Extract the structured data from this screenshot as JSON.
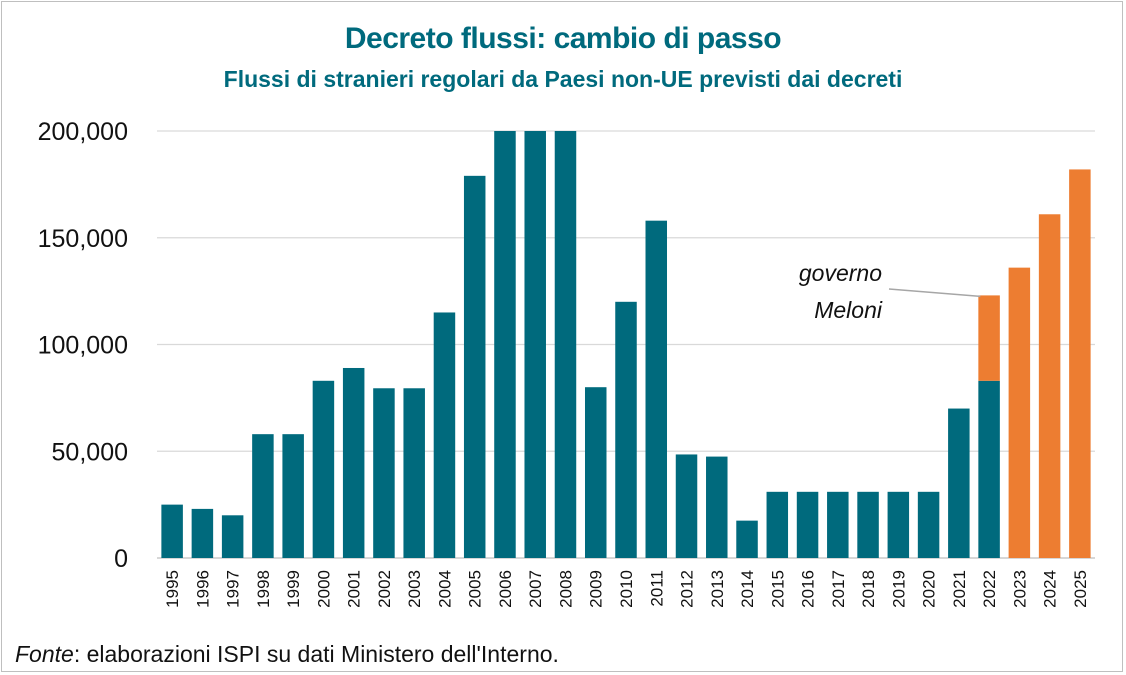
{
  "title": "Decreto flussi: cambio di passo",
  "subtitle": "Flussi di stranieri regolari da Paesi non-UE previsti dai decreti",
  "source_label": "Fonte",
  "source_text": ": elaborazioni ISPI su dati Ministero dell'Interno.",
  "colors": {
    "teal": "#006a7d",
    "orange": "#ed7d31",
    "grid": "#d9d9d9",
    "text": "#111111"
  },
  "chart_data": {
    "type": "bar",
    "stacked": true,
    "categories": [
      "1995",
      "1996",
      "1997",
      "1998",
      "1999",
      "2000",
      "2001",
      "2002",
      "2003",
      "2004",
      "2005",
      "2006",
      "2007",
      "2008",
      "2009",
      "2010",
      "2011",
      "2012",
      "2013",
      "2014",
      "2015",
      "2016",
      "2017",
      "2018",
      "2019",
      "2020",
      "2021",
      "2022",
      "2023",
      "2024",
      "2025"
    ],
    "series": [
      {
        "color": "#006a7d",
        "values": [
          25000,
          23000,
          20000,
          58000,
          58000,
          83000,
          89000,
          79500,
          79500,
          115000,
          179000,
          200000,
          200000,
          200000,
          80000,
          120000,
          158000,
          48500,
          47500,
          17500,
          31000,
          31000,
          31000,
          31000,
          31000,
          31000,
          70000,
          83000,
          0,
          0,
          0
        ]
      },
      {
        "color": "#ed7d31",
        "values": [
          0,
          0,
          0,
          0,
          0,
          0,
          0,
          0,
          0,
          0,
          0,
          0,
          0,
          0,
          0,
          0,
          0,
          0,
          0,
          0,
          0,
          0,
          0,
          0,
          0,
          0,
          0,
          40000,
          136000,
          161000,
          182000
        ]
      }
    ],
    "ylim": [
      0,
      200000
    ],
    "yticks": [
      0,
      50000,
      100000,
      150000,
      200000
    ],
    "ytick_labels": [
      "0",
      "50,000",
      "100,000",
      "150,000",
      "200,000"
    ],
    "grid": true,
    "annotation": {
      "lines": [
        "governo",
        "Meloni"
      ],
      "target_category": "2022"
    }
  }
}
